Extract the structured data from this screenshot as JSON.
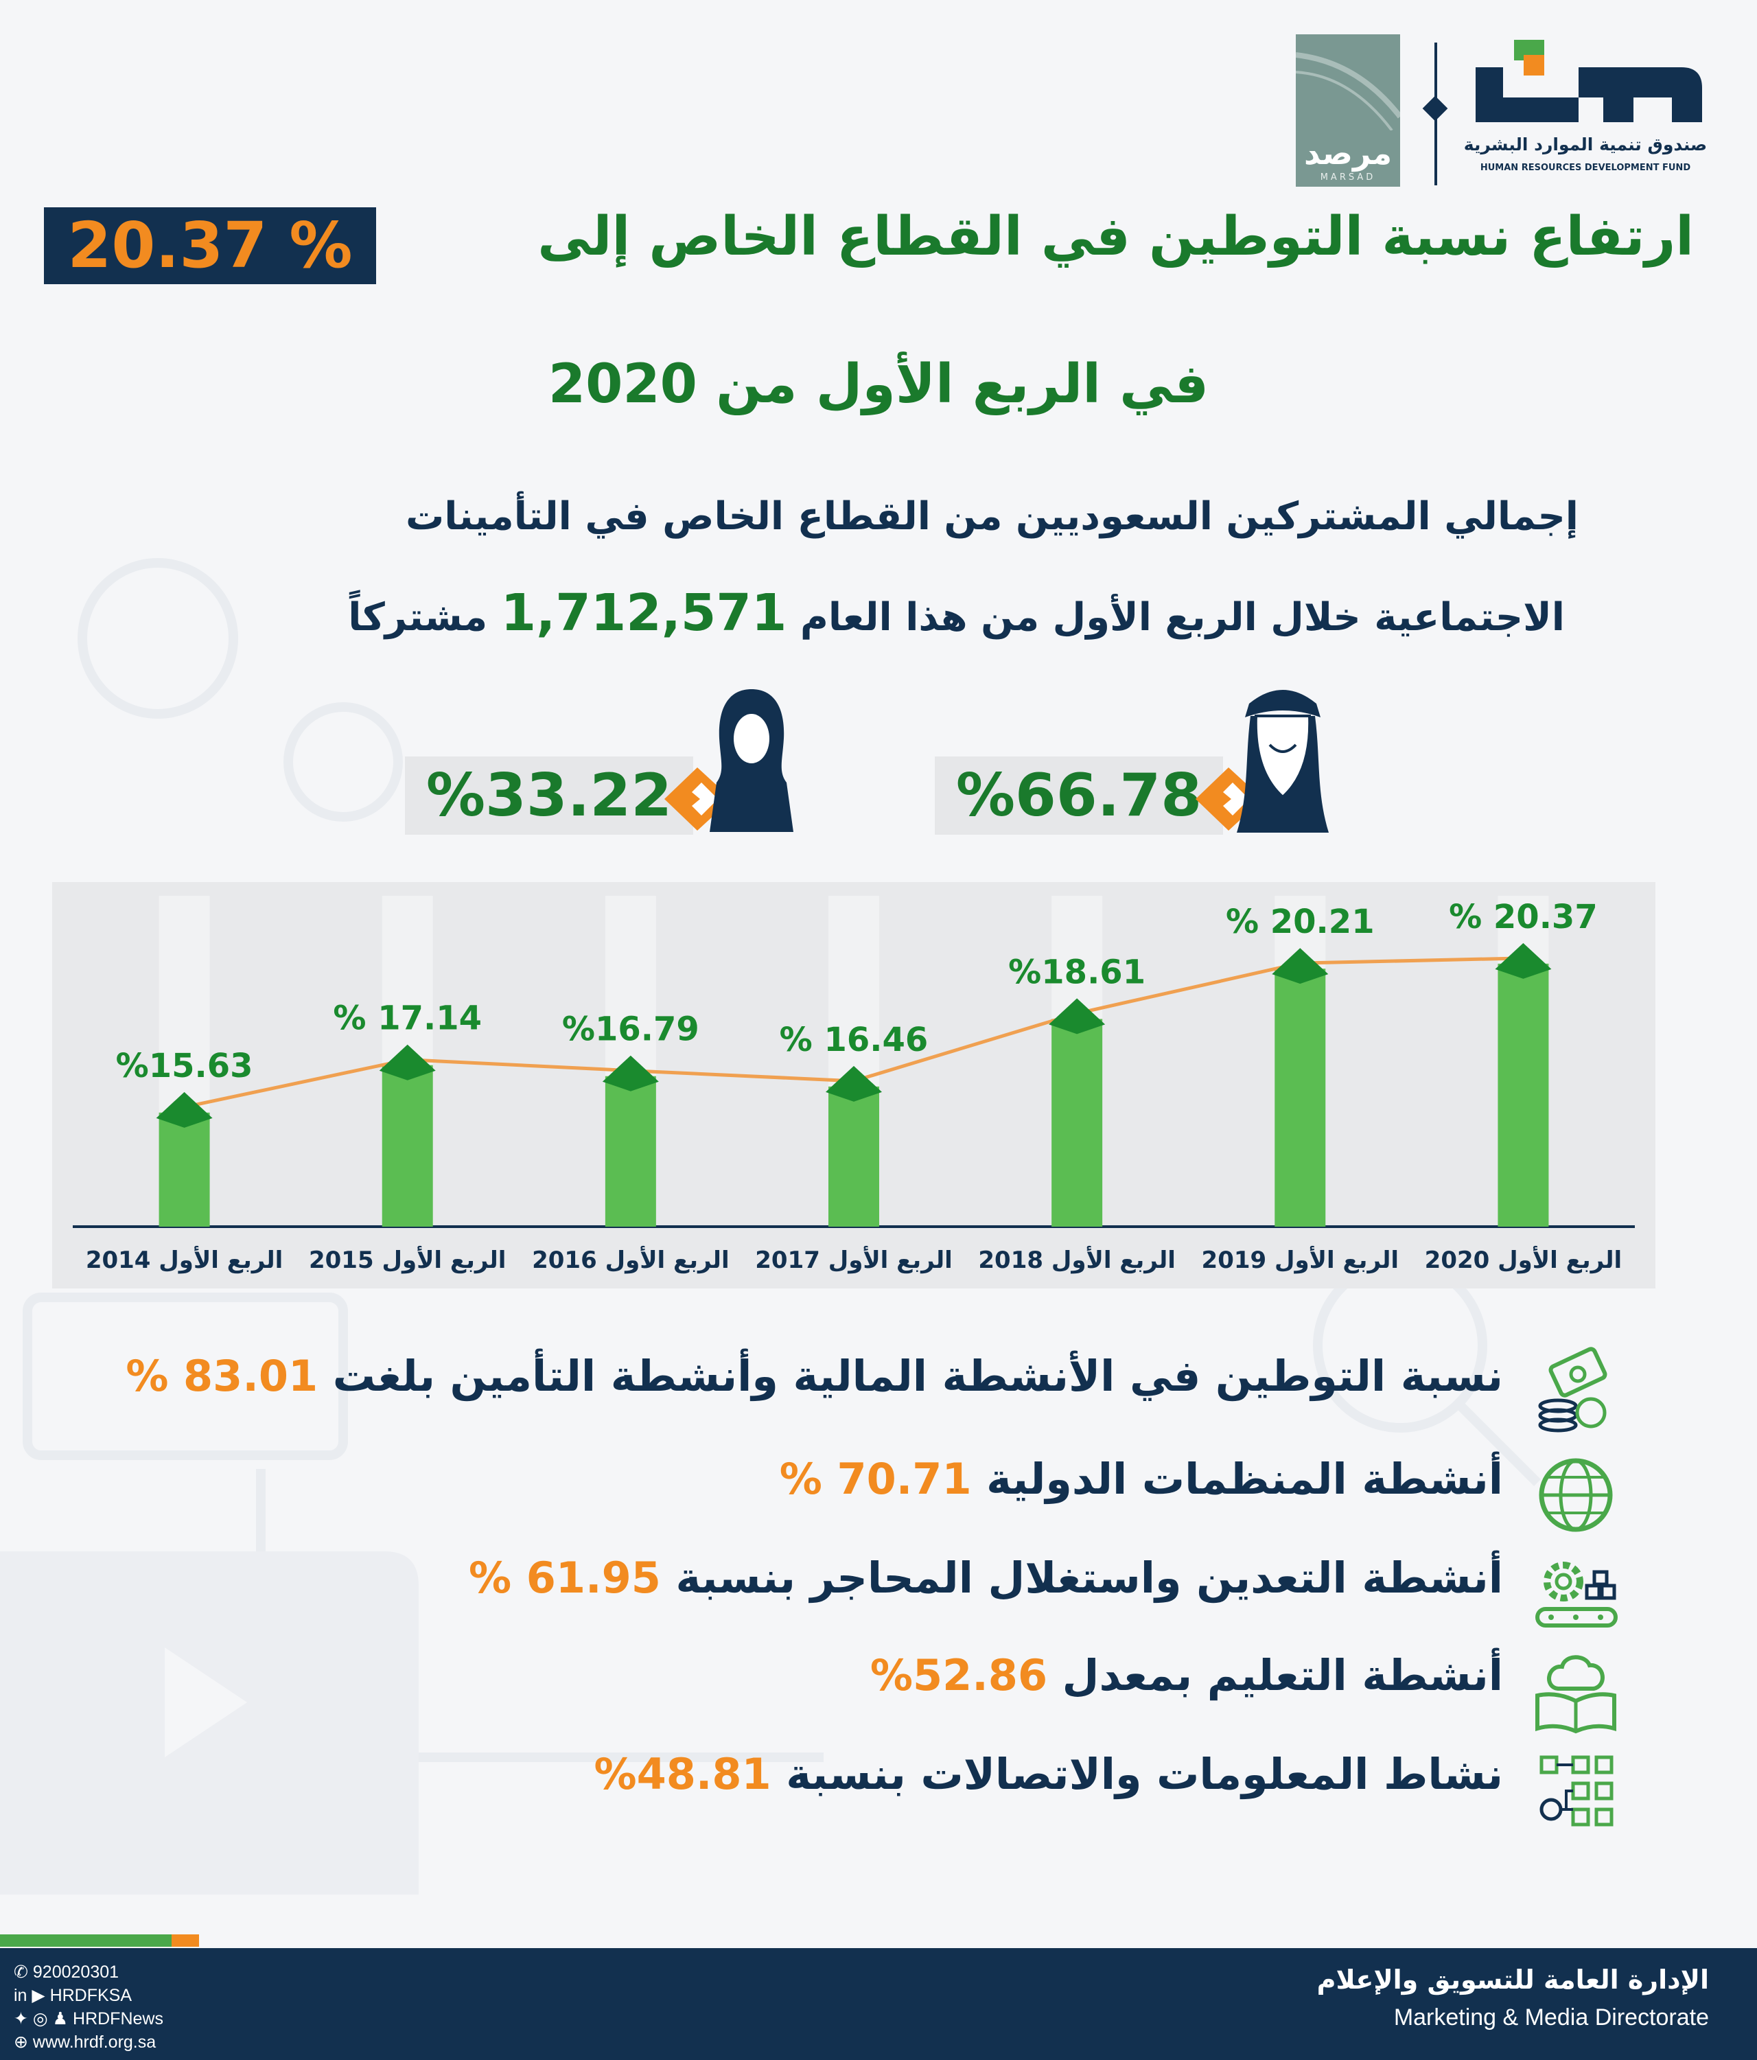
{
  "brand": {
    "marsad_ar": "مرصد",
    "marsad_en": "MARSAD",
    "hrdf_ar": "صندوق تنمية الموارد البشرية",
    "hrdf_en": "HUMAN RESOURCES DEVELOPMENT FUND"
  },
  "title": {
    "line1_text": "ارتفاع نسبة التوطين في القطاع الخاص إلى",
    "line1_highlight": "20.37 %",
    "line2": "في الربع الأول من 2020"
  },
  "subtitle": {
    "line1": "إجمالي المشتركين السعوديين من القطاع الخاص في التأمينات",
    "line2_before": "الاجتماعية خلال الربع الأول من هذا العام",
    "count": "1,712,571",
    "line2_after": "مشتركاً"
  },
  "gender": {
    "female_pct": "%33.22",
    "male_pct": "%66.78"
  },
  "chart_data": {
    "type": "bar",
    "categories": [
      "الربع الأول 2014",
      "الربع الأول 2015",
      "الربع الأول 2016",
      "الربع الأول 2017",
      "الربع الأول 2018",
      "الربع الأول 2019",
      "الربع الأول 2020"
    ],
    "values": [
      15.63,
      17.14,
      16.79,
      16.46,
      18.61,
      20.21,
      20.37
    ],
    "labels": [
      "%15.63",
      "% 17.14",
      "%16.79",
      "% 16.46",
      "%18.61",
      "% 20.21",
      "% 20.37"
    ],
    "overlay": "line",
    "ylim": [
      12,
      21
    ],
    "title": "",
    "xlabel": "",
    "ylabel": "",
    "colors": {
      "bar": "#5bbd52",
      "bar_top": "#1a8a2e",
      "line": "#f0a050",
      "label": "#1a8a2e",
      "axis": "#12304f"
    }
  },
  "activities": [
    {
      "icon": "money-coins-icon",
      "text": "نسبة التوطين في الأنشطة المالية وأنشطة التأمين بلغت",
      "value": "83.01 %"
    },
    {
      "icon": "globe-icon",
      "text": "أنشطة المنظمات الدولية",
      "value": "70.71 %"
    },
    {
      "icon": "gear-conveyor-icon",
      "text": "أنشطة التعدين واستغلال المحاجر بنسبة",
      "value": "61.95 %"
    },
    {
      "icon": "brain-book-icon",
      "text": "أنشطة التعليم بمعدل",
      "value": "52.86%"
    },
    {
      "icon": "network-diagram-icon",
      "text": "نشاط المعلومات والاتصالات بنسبة",
      "value": "48.81%"
    }
  ],
  "footer": {
    "directorate_ar": "الإدارة العامة للتسويق والإعلام",
    "directorate_en": "Marketing & Media Directorate",
    "phone": "920020301",
    "handle1": "HRDFKSA",
    "handle2": "HRDFNews",
    "website": "www.hrdf.org.sa"
  }
}
